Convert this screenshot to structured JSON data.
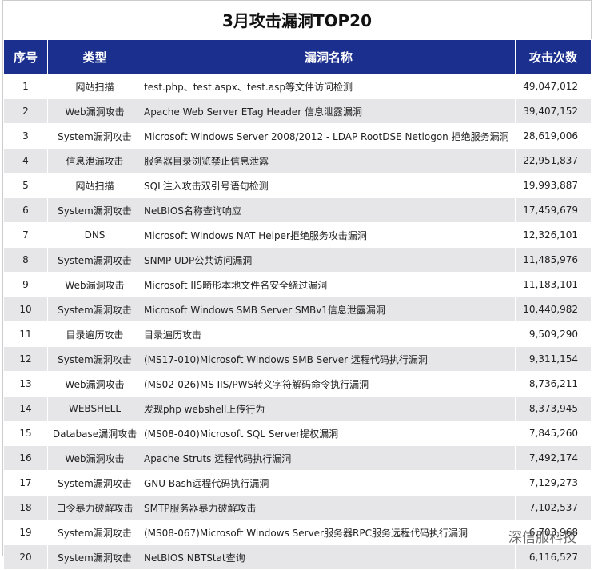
{
  "header": {
    "title": "3月攻击漏洞TOP20"
  },
  "table": {
    "columns": [
      "序号",
      "类型",
      "漏洞名称",
      "攻击次数"
    ],
    "rows": [
      [
        "1",
        "网站扫描",
        "test.php、test.aspx、test.asp等文件访问检测",
        "49,047,012"
      ],
      [
        "2",
        "Web漏洞攻击",
        "Apache Web Server ETag Header 信息泄露漏洞",
        "39,407,152"
      ],
      [
        "3",
        "System漏洞攻击",
        "Microsoft Windows Server 2008/2012 - LDAP RootDSE Netlogon 拒绝服务漏洞",
        "28,619,006"
      ],
      [
        "4",
        "信息泄漏攻击",
        "服务器目录浏览禁止信息泄露",
        "22,951,837"
      ],
      [
        "5",
        "网站扫描",
        "SQL注入攻击双引号语句检测",
        "19,993,887"
      ],
      [
        "6",
        "System漏洞攻击",
        "NetBIOS名称查询响应",
        "17,459,679"
      ],
      [
        "7",
        "DNS",
        "Microsoft Windows NAT Helper拒绝服务攻击漏洞",
        "12,326,101"
      ],
      [
        "8",
        "System漏洞攻击",
        "SNMP UDP公共访问漏洞",
        "11,485,976"
      ],
      [
        "9",
        "Web漏洞攻击",
        "Microsoft IIS畸形本地文件名安全绕过漏洞",
        "11,183,101"
      ],
      [
        "10",
        "System漏洞攻击",
        "Microsoft Windows SMB Server SMBv1信息泄露漏洞",
        "10,440,982"
      ],
      [
        "11",
        "目录遍历攻击",
        "目录遍历攻击",
        "9,509,290"
      ],
      [
        "12",
        "System漏洞攻击",
        "(MS17-010)Microsoft Windows SMB Server 远程代码执行漏洞",
        "9,311,154"
      ],
      [
        "13",
        "Web漏洞攻击",
        "(MS02-026)MS IIS/PWS转义字符解码命令执行漏洞",
        "8,736,211"
      ],
      [
        "14",
        "WEBSHELL",
        "发现php webshell上传行为",
        "8,373,945"
      ],
      [
        "15",
        "Database漏洞攻击",
        "(MS08-040)Microsoft SQL Server提权漏洞",
        "7,845,260"
      ],
      [
        "16",
        "Web漏洞攻击",
        "Apache Struts 远程代码执行漏洞",
        "7,492,174"
      ],
      [
        "17",
        "System漏洞攻击",
        "GNU Bash远程代码执行漏洞",
        "7,129,273"
      ],
      [
        "18",
        "口令暴力破解攻击",
        "SMTP服务器暴力破解攻击",
        "7,102,537"
      ],
      [
        "19",
        "System漏洞攻击",
        "(MS08-067)Microsoft Windows Server服务器RPC服务远程代码执行漏洞",
        "6,703,968"
      ],
      [
        "20",
        "System漏洞攻击",
        "NetBIOS NBTStat查询",
        "6,116,527"
      ]
    ]
  },
  "watermark": "深信服科技"
}
